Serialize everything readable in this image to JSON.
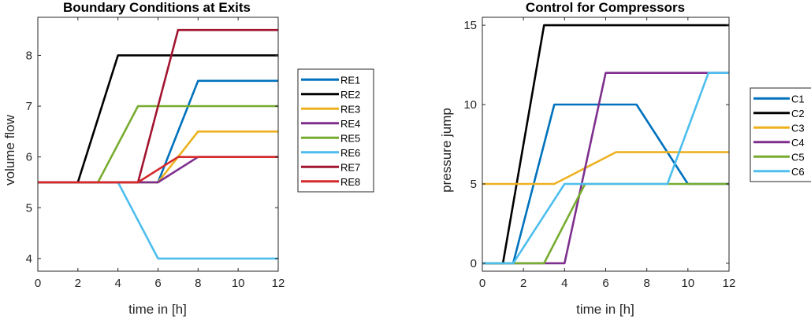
{
  "charts": [
    {
      "type": "line",
      "title": "Boundary Conditions at Exits",
      "xlabel": "time in [h]",
      "ylabel": "volume flow",
      "xlim": [
        0,
        12
      ],
      "ylim": [
        3.75,
        8.75
      ],
      "xticks": [
        0,
        2,
        4,
        6,
        8,
        10,
        12
      ],
      "yticks": [
        4,
        5,
        6,
        7,
        8
      ],
      "grid": false,
      "legend_position": "outside-right",
      "series": [
        {
          "name": "RE1",
          "color": "#0072BD",
          "x": [
            0,
            6,
            8,
            12
          ],
          "y": [
            5.5,
            5.5,
            7.5,
            7.5
          ]
        },
        {
          "name": "RE2",
          "color": "#000000",
          "x": [
            0,
            2,
            4,
            12
          ],
          "y": [
            5.5,
            5.5,
            8,
            8
          ]
        },
        {
          "name": "RE3",
          "color": "#EDB120",
          "x": [
            0,
            6,
            8,
            12
          ],
          "y": [
            5.5,
            5.5,
            6.5,
            6.5
          ]
        },
        {
          "name": "RE4",
          "color": "#7E2F8E",
          "x": [
            0,
            6,
            8,
            12
          ],
          "y": [
            5.5,
            5.5,
            6,
            6
          ]
        },
        {
          "name": "RE5",
          "color": "#77AC30",
          "x": [
            0,
            3,
            5,
            12
          ],
          "y": [
            5.5,
            5.5,
            7,
            7
          ]
        },
        {
          "name": "RE6",
          "color": "#4DBEEE",
          "x": [
            0,
            4,
            6,
            12
          ],
          "y": [
            5.5,
            5.5,
            4,
            4
          ]
        },
        {
          "name": "RE7",
          "color": "#A2142F",
          "x": [
            0,
            5,
            7,
            12
          ],
          "y": [
            5.5,
            5.5,
            8.5,
            8.5
          ]
        },
        {
          "name": "RE8",
          "color": "#D62A2A",
          "x": [
            0,
            5,
            7,
            12
          ],
          "y": [
            5.5,
            5.5,
            6,
            6
          ]
        }
      ]
    },
    {
      "type": "line",
      "title": "Control for Compressors",
      "xlabel": "time in [h]",
      "ylabel": "pressure jump",
      "xlim": [
        0,
        12
      ],
      "ylim": [
        -0.5,
        15.5
      ],
      "xticks": [
        0,
        2,
        4,
        6,
        8,
        10,
        12
      ],
      "yticks": [
        0,
        5,
        10,
        15
      ],
      "grid": false,
      "legend_position": "outside-right",
      "series": [
        {
          "name": "C1",
          "color": "#0072BD",
          "x": [
            0,
            1.5,
            3.5,
            7.5,
            10,
            12
          ],
          "y": [
            0,
            0,
            10,
            10,
            5,
            5
          ]
        },
        {
          "name": "C2",
          "color": "#000000",
          "x": [
            0,
            1,
            3,
            12
          ],
          "y": [
            0,
            0,
            15,
            15
          ]
        },
        {
          "name": "C3",
          "color": "#EDB120",
          "x": [
            0,
            3.5,
            6.5,
            12
          ],
          "y": [
            5,
            5,
            7,
            7
          ]
        },
        {
          "name": "C4",
          "color": "#7E2F8E",
          "x": [
            0,
            4,
            6,
            12
          ],
          "y": [
            0,
            0,
            12,
            12
          ]
        },
        {
          "name": "C5",
          "color": "#77AC30",
          "x": [
            0,
            3,
            5,
            12
          ],
          "y": [
            0,
            0,
            5,
            5
          ]
        },
        {
          "name": "C6",
          "color": "#4DBEEE",
          "x": [
            0,
            1.5,
            4,
            9,
            11,
            12
          ],
          "y": [
            0,
            0,
            5,
            5,
            12,
            12
          ]
        }
      ]
    }
  ]
}
